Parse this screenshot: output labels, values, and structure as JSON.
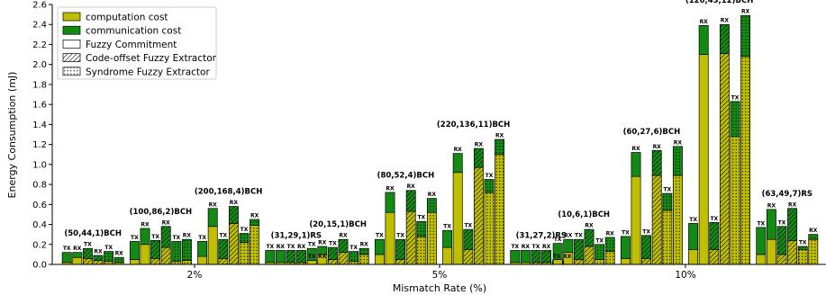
{
  "chart_data": {
    "type": "bar",
    "stacking": "stacked",
    "xlabel": "Mismatch Rate (%)",
    "ylabel": "Energy Consumption (mJ)",
    "ylim": [
      0,
      2.6
    ],
    "yticks": [
      "0.0",
      "0.2",
      "0.4",
      "0.6",
      "0.8",
      "1.0",
      "1.2",
      "1.4",
      "1.6",
      "1.8",
      "2.0",
      "2.2",
      "2.4",
      "2.6"
    ],
    "grid": false,
    "legend_position": "top-left",
    "colors": {
      "computation": "#bfbf00",
      "communication": "#138a13",
      "edge": "#000000"
    },
    "legend": [
      {
        "label": "computation cost",
        "kind": "color",
        "key": "computation"
      },
      {
        "label": "communication cost",
        "kind": "color",
        "key": "communication"
      },
      {
        "label": "Fuzzy Commitment",
        "kind": "hatch",
        "key": "plain"
      },
      {
        "label": "Code-offset Fuzzy Extractor",
        "kind": "hatch",
        "key": "diag"
      },
      {
        "label": "Syndrome Fuzzy Extractor",
        "kind": "hatch",
        "key": "dots"
      }
    ],
    "bar_labels": [
      "TX",
      "RX"
    ],
    "groups": [
      {
        "mismatch": "2%",
        "configs": [
          {
            "label": "(50,44,1)BCH",
            "bars": [
              [
                0.02,
                0.1
              ],
              [
                0.07,
                0.05
              ],
              [
                0.06,
                0.1
              ],
              [
                0.04,
                0.05
              ],
              [
                0.03,
                0.1
              ],
              [
                0.02,
                0.05
              ]
            ]
          },
          {
            "label": "(100,86,2)BCH",
            "bars": [
              [
                0.05,
                0.18
              ],
              [
                0.2,
                0.16
              ],
              [
                0.06,
                0.18
              ],
              [
                0.17,
                0.21
              ],
              [
                0.03,
                0.2
              ],
              [
                0.04,
                0.21
              ]
            ]
          },
          {
            "label": "(200,168,4)BCH",
            "bars": [
              [
                0.08,
                0.15
              ],
              [
                0.38,
                0.18
              ],
              [
                0.06,
                0.19
              ],
              [
                0.41,
                0.17
              ],
              [
                0.22,
                0.09
              ],
              [
                0.39,
                0.06
              ]
            ]
          },
          {
            "label": "(31,29,1)RS",
            "bars": [
              [
                0.02,
                0.12
              ],
              [
                0.02,
                0.12
              ],
              [
                0.02,
                0.12
              ],
              [
                0.02,
                0.12
              ],
              [
                0.01,
                0.03
              ],
              [
                0.01,
                0.03
              ]
            ]
          }
        ]
      },
      {
        "mismatch": "5%",
        "configs": [
          {
            "label": "(20,15,1)BCH",
            "bars": [
              [
                0.04,
                0.12
              ],
              [
                0.1,
                0.08
              ],
              [
                0.05,
                0.12
              ],
              [
                0.12,
                0.13
              ],
              [
                0.03,
                0.1
              ],
              [
                0.1,
                0.06
              ]
            ]
          },
          {
            "label": "(80,52,4)BCH",
            "bars": [
              [
                0.1,
                0.15
              ],
              [
                0.52,
                0.2
              ],
              [
                0.05,
                0.2
              ],
              [
                0.53,
                0.21
              ],
              [
                0.28,
                0.15
              ],
              [
                0.52,
                0.14
              ]
            ]
          },
          {
            "label": "(220,136,11)BCH",
            "bars": [
              [
                0.17,
                0.17
              ],
              [
                0.92,
                0.19
              ],
              [
                0.15,
                0.2
              ],
              [
                0.97,
                0.19
              ],
              [
                0.72,
                0.13
              ],
              [
                1.1,
                0.15
              ]
            ]
          },
          {
            "label": "(31,27,2)RS",
            "bars": [
              [
                0.02,
                0.12
              ],
              [
                0.02,
                0.12
              ],
              [
                0.02,
                0.12
              ],
              [
                0.02,
                0.12
              ],
              [
                0.01,
                0.03
              ],
              [
                0.01,
                0.03
              ]
            ]
          }
        ]
      },
      {
        "mismatch": "10%",
        "configs": [
          {
            "label": "(10,6,1)BCH",
            "bars": [
              [
                0.05,
                0.16
              ],
              [
                0.12,
                0.13
              ],
              [
                0.05,
                0.2
              ],
              [
                0.18,
                0.17
              ],
              [
                0.05,
                0.15
              ],
              [
                0.13,
                0.14
              ]
            ]
          },
          {
            "label": "(60,27,6)BCH",
            "bars": [
              [
                0.06,
                0.22
              ],
              [
                0.88,
                0.24
              ],
              [
                0.06,
                0.23
              ],
              [
                0.89,
                0.25
              ],
              [
                0.54,
                0.17
              ],
              [
                0.89,
                0.29
              ]
            ]
          },
          {
            "label": "(120,43,12)BCH",
            "bars": [
              [
                0.15,
                0.26
              ],
              [
                2.1,
                0.29
              ],
              [
                0.15,
                0.27
              ],
              [
                2.11,
                0.29
              ],
              [
                1.28,
                0.35
              ],
              [
                2.08,
                0.41
              ]
            ]
          },
          {
            "label": "(63,49,7)RS",
            "bars": [
              [
                0.1,
                0.27
              ],
              [
                0.25,
                0.3
              ],
              [
                0.1,
                0.28
              ],
              [
                0.24,
                0.32
              ],
              [
                0.15,
                0.03
              ],
              [
                0.25,
                0.05
              ]
            ]
          }
        ]
      }
    ]
  }
}
